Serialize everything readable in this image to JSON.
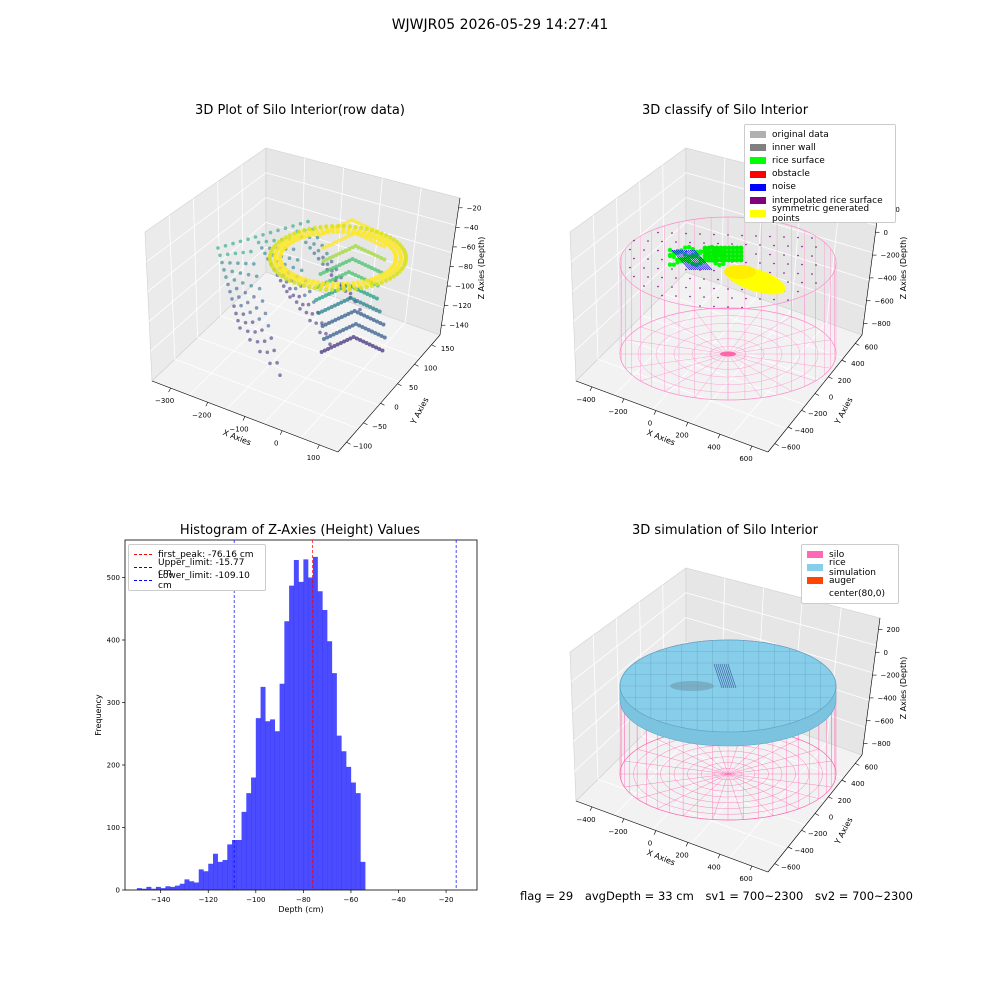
{
  "figure": {
    "suptitle": "WJWJR05 2026-05-29 14:27:41",
    "footer": {
      "flag": "flag = 29",
      "avg_depth": "avgDepth = 33 cm",
      "sv1": "sv1 = 700~2300",
      "sv2": "sv2 = 700~2300"
    }
  },
  "chart_data": [
    {
      "type": "scatter",
      "title": "3D Plot of Silo Interior(row data)",
      "xlabel": "X Axies",
      "ylabel": "Y Axies",
      "zlabel": "Z Axies (Depth)",
      "x_ticks": [
        "−300",
        "−200",
        "−100",
        "0",
        "100"
      ],
      "y_ticks": [
        "−100",
        "−50",
        "0",
        "50",
        "100",
        "150"
      ],
      "z_ticks": [
        "−20",
        "−40",
        "−60",
        "−80",
        "−100",
        "−120",
        "−140"
      ],
      "xlim": [
        -340,
        110
      ],
      "ylim": [
        -110,
        160
      ],
      "zlim": [
        -150,
        -10
      ],
      "colormap": "viridis"
    },
    {
      "type": "scatter",
      "title": "3D classify of Silo Interior",
      "xlabel": "X Axies",
      "ylabel": "Y Axies",
      "zlabel": "Z Axies (Depth)",
      "x_ticks": [
        "−400",
        "−200",
        "0",
        "200",
        "400",
        "600"
      ],
      "y_ticks": [
        "−600",
        "−400",
        "−200",
        "0",
        "200",
        "400",
        "600"
      ],
      "z_ticks": [
        "200",
        "0",
        "−200",
        "−400",
        "−600",
        "−800"
      ],
      "legend": [
        {
          "label": "original data",
          "color": "#b0b0b0"
        },
        {
          "label": "inner wall",
          "color": "#808080"
        },
        {
          "label": "rice surface",
          "color": "#00ff00"
        },
        {
          "label": "obstacle",
          "color": "#ff0000"
        },
        {
          "label": "noise",
          "color": "#0000ff"
        },
        {
          "label": "interpolated rice surface",
          "color": "#800080"
        },
        {
          "label": "symmetric generated points",
          "color": "#ffff00"
        }
      ]
    },
    {
      "type": "bar",
      "title": "Histogram of Z-Axies (Height) Values",
      "xlabel": "Depth (cm)",
      "ylabel": "Frequency",
      "xlim": [
        -155,
        -7
      ],
      "ylim": [
        0,
        560
      ],
      "x_ticks": [
        -140,
        -120,
        -100,
        -80,
        -60,
        -40,
        -20
      ],
      "y_ticks": [
        0,
        100,
        200,
        300,
        400,
        500
      ],
      "bar_color": "#0000ff",
      "bin_start": -150,
      "bin_width": 2,
      "values": [
        3,
        2,
        5,
        2,
        5,
        3,
        6,
        5,
        7,
        10,
        17,
        14,
        12,
        33,
        30,
        42,
        58,
        45,
        48,
        73,
        80,
        80,
        125,
        155,
        180,
        275,
        325,
        270,
        273,
        254,
        330,
        430,
        487,
        528,
        493,
        529,
        500,
        533,
        478,
        448,
        398,
        347,
        247,
        222,
        197,
        172,
        155,
        45
      ],
      "reference_lines": [
        {
          "label": "first_peak: -76.16 cm",
          "x": -76.16,
          "color": "#ff0000"
        },
        {
          "label": "Upper_limit: -15.77 cm",
          "x": -15.77,
          "color": "#0000ff"
        },
        {
          "label": "Lower_limit: -109.10 cm",
          "x": -109.1,
          "color": "#0000ff"
        }
      ]
    },
    {
      "type": "area",
      "title": "3D simulation of Silo Interior",
      "xlabel": "X Axies",
      "ylabel": "Y Axies",
      "zlabel": "Z Axies (Depth)",
      "x_ticks": [
        "−400",
        "−200",
        "0",
        "200",
        "400",
        "600"
      ],
      "y_ticks": [
        "−600",
        "−400",
        "−200",
        "0",
        "200",
        "400",
        "600"
      ],
      "z_ticks": [
        "200",
        "0",
        "−200",
        "−400",
        "−600",
        "−800"
      ],
      "legend": [
        {
          "label": "silo",
          "color": "#ff69b4"
        },
        {
          "label": "rice simulation",
          "color": "#87ceeb"
        },
        {
          "label": "auger",
          "color": "#ff4500"
        },
        {
          "label": "center(80,0)",
          "color": ""
        }
      ]
    }
  ]
}
